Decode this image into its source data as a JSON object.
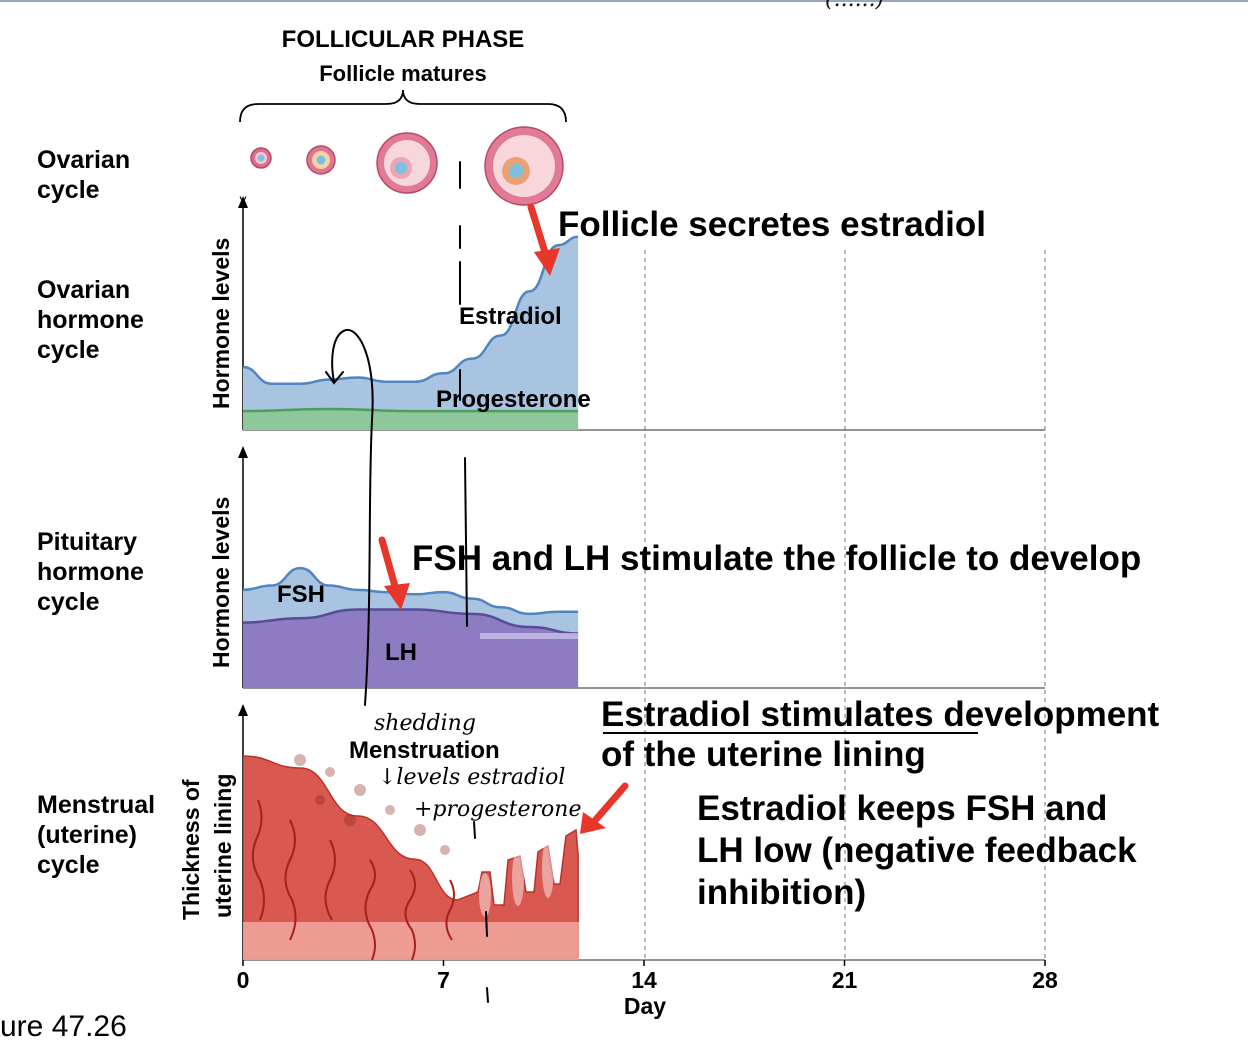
{
  "header": {
    "phase_title": "FOLLICULAR PHASE",
    "phase_subtitle": "Follicle matures",
    "top_scribble": "(......)"
  },
  "rows": {
    "ovarian_cycle": [
      "Ovarian",
      "cycle"
    ],
    "ovarian_hormone_cycle": [
      "Ovarian",
      "hormone",
      "cycle"
    ],
    "pituitary_hormone_cycle": [
      "Pituitary",
      "hormone",
      "cycle"
    ],
    "menstrual_cycle": [
      "Menstrual",
      "(uterine)",
      "cycle"
    ]
  },
  "axes": {
    "hormone_levels": "Hormone levels",
    "thickness_line1": "Thickness of",
    "thickness_line2": "uterine lining",
    "day_label": "Day",
    "day_ticks": [
      "0",
      "7",
      "14",
      "21",
      "28"
    ]
  },
  "curve_labels": {
    "estradiol": "Estradiol",
    "progesterone": "Progesterone",
    "fsh": "FSH",
    "lh": "LH",
    "menstruation": "Menstruation"
  },
  "annotations": {
    "follicle_secretes": "Follicle secretes estradiol",
    "fsh_lh_stimulate": "FSH and LH stimulate the follicle to develop",
    "estradiol_stimulates_1": "Estradiol stimulates development",
    "estradiol_stimulates_2": "of the uterine lining",
    "negative_feedback_1": "Estradiol keeps FSH and",
    "negative_feedback_2": "LH low (negative feedback",
    "negative_feedback_3": "inhibition)"
  },
  "handwriting": {
    "shedding": "shedding",
    "levels_line1": "↓levels estradiol",
    "levels_line2": "+progesterone"
  },
  "figure_caption": "ure 47.26",
  "colors": {
    "estradiol_fill": "#a9c4e0",
    "estradiol_line": "#4f86c0",
    "progesterone_fill": "#8ec79a",
    "progesterone_line": "#4d9e5c",
    "fsh_fill": "#a9c4e0",
    "lh_fill": "#8d7cc2",
    "lining_red": "#d9584f",
    "lining_light": "#f1a89f",
    "arrow_red": "#e8372a"
  },
  "chart_data": {
    "type": "area",
    "x_label": "Day",
    "x_ticks": [
      0,
      7,
      14,
      21,
      28
    ],
    "xlim": [
      0,
      28
    ],
    "panels": [
      {
        "name": "Ovarian hormone cycle",
        "series": [
          {
            "name": "Estradiol",
            "x": [
              0,
              1,
              2,
              3,
              4,
              5,
              6,
              7,
              8,
              9,
              10,
              11,
              11.7
            ],
            "values": [
              0.3,
              0.22,
              0.22,
              0.24,
              0.25,
              0.23,
              0.23,
              0.27,
              0.34,
              0.45,
              0.66,
              0.88,
              0.92
            ]
          },
          {
            "name": "Progesterone",
            "x": [
              0,
              3,
              6,
              9,
              11.7
            ],
            "values": [
              0.09,
              0.1,
              0.09,
              0.09,
              0.09
            ]
          }
        ]
      },
      {
        "name": "Pituitary hormone cycle",
        "series": [
          {
            "name": "FSH",
            "x": [
              0,
              1,
              2,
              3,
              4,
              5,
              6,
              7,
              8,
              9,
              10,
              11,
              11.7
            ],
            "values": [
              0.45,
              0.47,
              0.55,
              0.47,
              0.45,
              0.44,
              0.43,
              0.44,
              0.41,
              0.37,
              0.34,
              0.35,
              0.35
            ]
          },
          {
            "name": "LH",
            "x": [
              0,
              2,
              4,
              6,
              8,
              10,
              11.7
            ],
            "values": [
              0.3,
              0.32,
              0.36,
              0.36,
              0.34,
              0.28,
              0.25
            ]
          }
        ]
      },
      {
        "name": "Menstrual (uterine) cycle",
        "series": [
          {
            "name": "Uterine lining thickness",
            "x": [
              0,
              2,
              4,
              6,
              7.5,
              8.5,
              10,
              11.7
            ],
            "values": [
              0.85,
              0.8,
              0.6,
              0.42,
              0.25,
              0.2,
              0.4,
              0.48
            ]
          }
        ]
      }
    ]
  }
}
